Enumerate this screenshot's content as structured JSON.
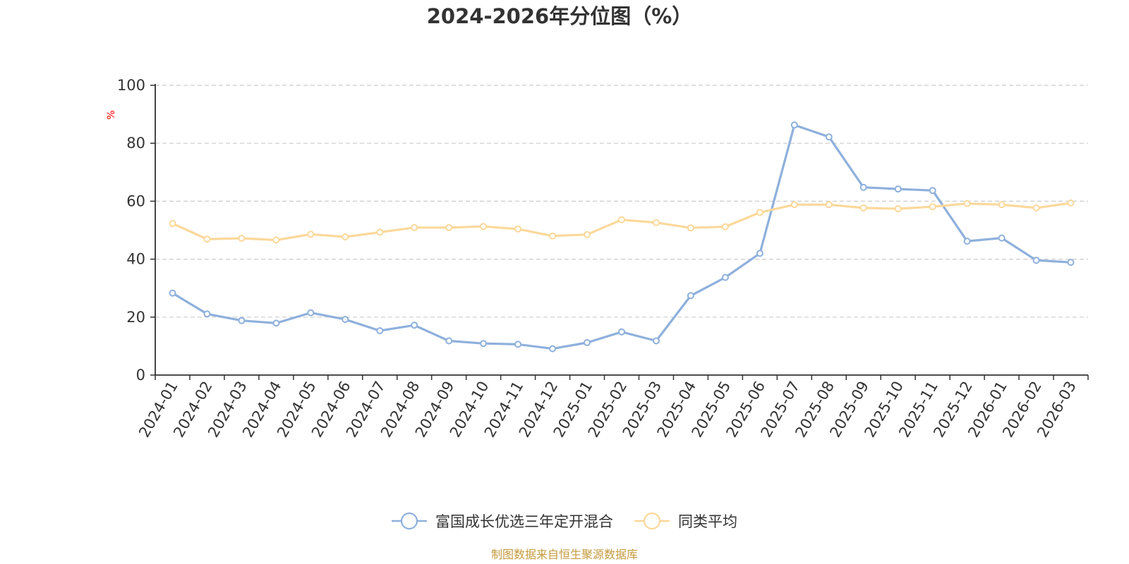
{
  "chart_data": {
    "type": "line",
    "title": "2024-2026年分位图（%）",
    "ylabel": "%",
    "xlabel": "",
    "ylim": [
      0,
      100
    ],
    "yticks": [
      "0",
      "20",
      "40",
      "60",
      "80",
      "100"
    ],
    "grid": true,
    "legend_position": "bottom",
    "categories": [
      "2024-01",
      "2024-02",
      "2024-03",
      "2024-04",
      "2024-05",
      "2024-06",
      "2024-07",
      "2024-08",
      "2024-09",
      "2024-10",
      "2024-11",
      "2024-12",
      "2025-01",
      "2025-02",
      "2025-03",
      "2025-04",
      "2025-05",
      "2025-06",
      "2025-07",
      "2025-08",
      "2025-09",
      "2025-10",
      "2025-11",
      "2025-12",
      "2026-01",
      "2026-02",
      "2026-03"
    ],
    "series": [
      {
        "name": "富国成长优选三年定开混合",
        "color": "#8eb0dc",
        "values": [
          28.3,
          21.1,
          18.8,
          17.9,
          21.5,
          19.2,
          15.3,
          17.2,
          11.8,
          10.9,
          10.6,
          9.1,
          11.2,
          14.9,
          11.8,
          27.4,
          33.7,
          42.0,
          86.3,
          82.2,
          64.8,
          64.2,
          63.7,
          46.2,
          47.3,
          39.6,
          38.9
        ]
      },
      {
        "name": "同类平均",
        "color": "#fbd89a",
        "values": [
          52.3,
          46.9,
          47.2,
          46.6,
          48.6,
          47.7,
          49.3,
          50.9,
          50.9,
          51.3,
          50.4,
          48.0,
          48.5,
          53.6,
          52.6,
          50.8,
          51.2,
          56.1,
          58.8,
          58.8,
          57.7,
          57.4,
          58.1,
          59.2,
          58.8,
          57.7,
          59.4
        ]
      }
    ],
    "source": "制图数据来自恒生聚源数据库"
  }
}
